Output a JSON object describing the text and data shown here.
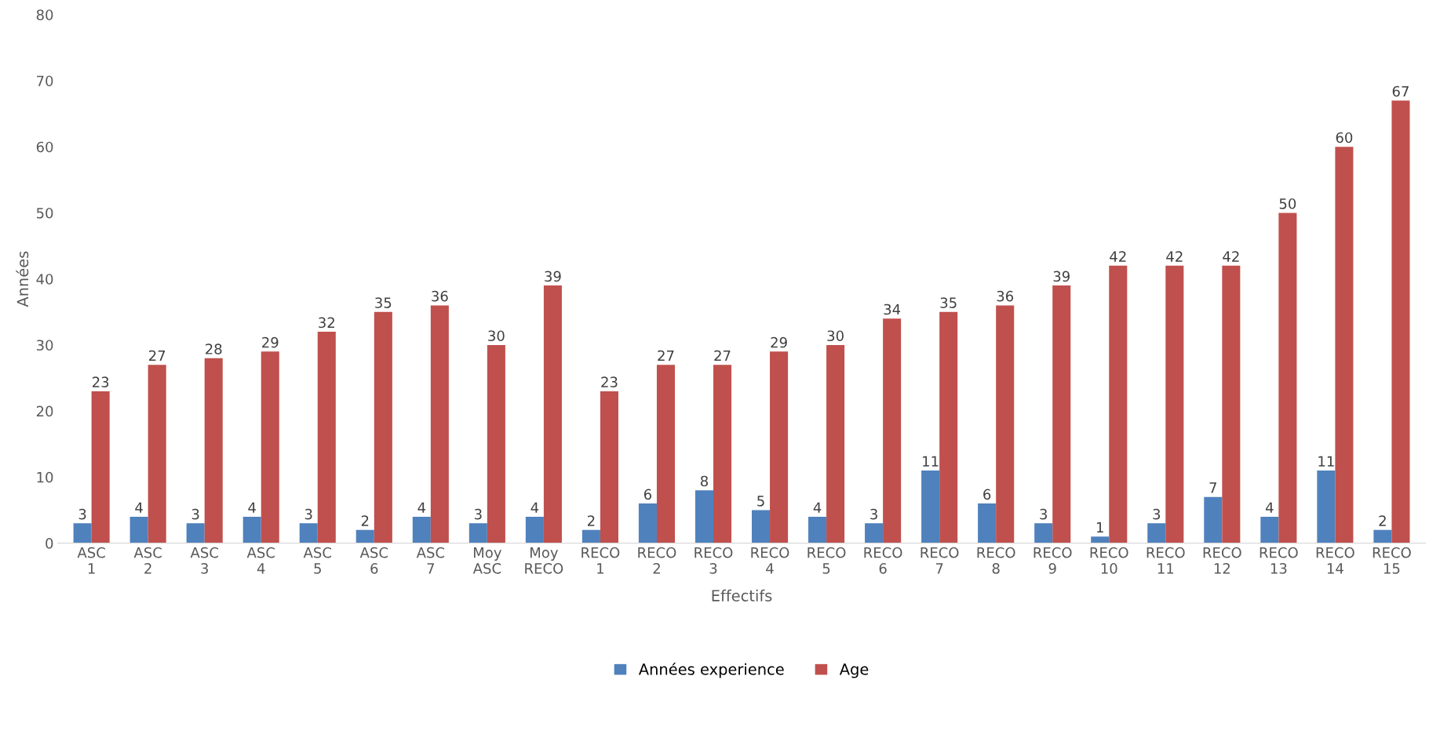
{
  "chart_data": {
    "type": "bar",
    "xlabel": "Effectifs",
    "ylabel": "Années",
    "categories": [
      "ASC\n1",
      "ASC\n2",
      "ASC\n3",
      "ASC\n4",
      "ASC\n5",
      "ASC\n6",
      "ASC\n7",
      "Moy\nASC",
      "Moy\nRECO",
      "RECO\n1",
      "RECO\n2",
      "RECO\n3",
      "RECO\n4",
      "RECO\n5",
      "RECO\n6",
      "RECO\n7",
      "RECO\n8",
      "RECO\n9",
      "RECO\n10",
      "RECO\n11",
      "RECO\n12",
      "RECO\n13",
      "RECO\n14",
      "RECO\n15"
    ],
    "series": [
      {
        "name": "Années experience",
        "color": "#4f81bd",
        "values": [
          3,
          4,
          3,
          4,
          3,
          2,
          4,
          3,
          4,
          2,
          6,
          8,
          5,
          4,
          3,
          11,
          6,
          3,
          1,
          3,
          7,
          4,
          11,
          2
        ]
      },
      {
        "name": "Age",
        "color": "#c0504d",
        "values": [
          23,
          27,
          28,
          29,
          32,
          35,
          36,
          30,
          39,
          23,
          27,
          27,
          29,
          30,
          34,
          35,
          36,
          39,
          42,
          42,
          42,
          50,
          60,
          67
        ]
      }
    ],
    "ylim": [
      0,
      80
    ],
    "yticks": [
      0,
      10,
      20,
      30,
      40,
      50,
      60,
      70,
      80
    ],
    "grid": false,
    "legend": "bottom",
    "data_labels": true
  }
}
